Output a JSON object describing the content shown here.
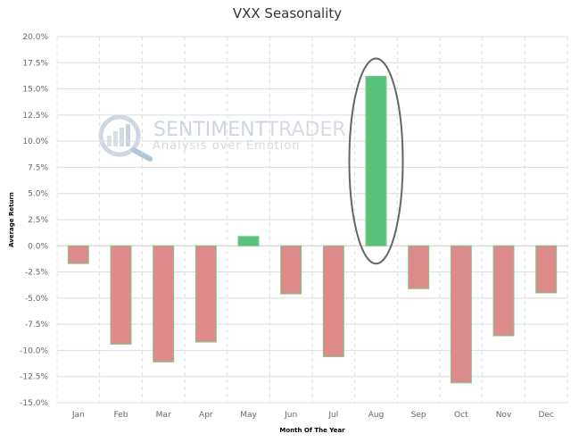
{
  "chart_data": {
    "type": "bar",
    "title": "VXX Seasonality",
    "xlabel": "Month Of The Year",
    "ylabel": "Average Return",
    "categories": [
      "Jan",
      "Feb",
      "Mar",
      "Apr",
      "May",
      "Jun",
      "Jul",
      "Aug",
      "Sep",
      "Oct",
      "Nov",
      "Dec"
    ],
    "series": [
      {
        "values": [
          -1.7,
          -9.4,
          -11.1,
          -9.2,
          0.9,
          -4.6,
          -10.6,
          16.2,
          -4.1,
          -13.1,
          -8.6,
          -4.5
        ]
      }
    ],
    "ylim": [
      -15,
      20
    ],
    "yticks": [
      "20.0%",
      "17.5%",
      "15.0%",
      "12.5%",
      "10.0%",
      "7.5%",
      "5.0%",
      "2.5%",
      "0.0%",
      "-2.5%",
      "-5.0%",
      "-7.5%",
      "-10.0%",
      "-12.5%",
      "-15.0%"
    ],
    "ytick_values": [
      20,
      17.5,
      15,
      12.5,
      10,
      7.5,
      5,
      2.5,
      0,
      -2.5,
      -5,
      -7.5,
      -10,
      -12.5,
      -15
    ],
    "grid": true,
    "colors": {
      "positive": "#57c27a",
      "negative": "#dc8a8a",
      "bar_border": "#7fc88e",
      "highlight_ellipse": "#666666",
      "grid": "#dddddd"
    },
    "highlight": "Aug"
  },
  "watermark": {
    "brand_left": "SENTIMENT",
    "brand_right": "TRADER",
    "tagline": "Analysis over Emotion",
    "icon": "magnifier-chart-icon"
  }
}
